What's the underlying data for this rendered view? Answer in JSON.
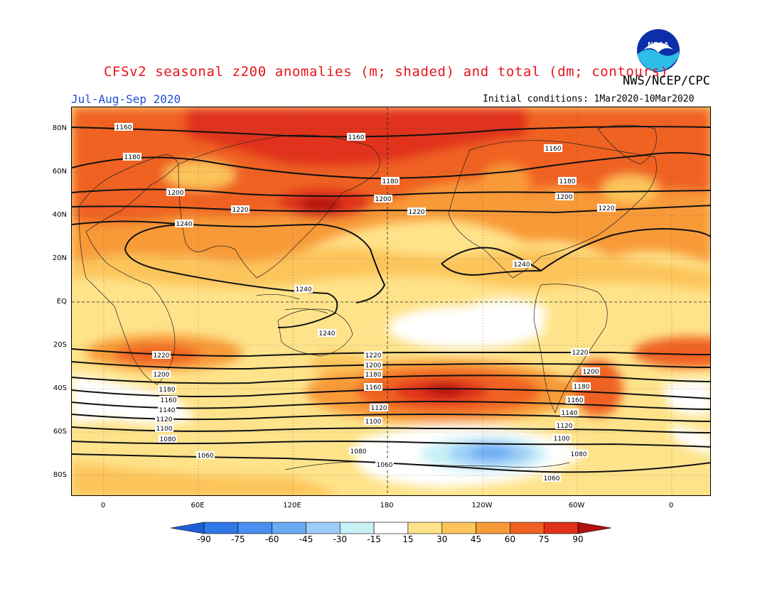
{
  "title": "CFSv2 seasonal z200 anomalies (m; shaded) and total (dm; contours)",
  "agency": "NWS/NCEP/CPC",
  "season": "Jul-Aug-Sep 2020",
  "initial_conditions": "Initial conditions: 1Mar2020-10Mar2020",
  "logo_text": "NOAA",
  "lat_labels": [
    "80N",
    "60N",
    "40N",
    "20N",
    "EQ",
    "20S",
    "40S",
    "60S",
    "80S"
  ],
  "lon_labels": [
    "0",
    "60E",
    "120E",
    "180",
    "120W",
    "60W",
    "0"
  ],
  "colorbar": {
    "labels": [
      "-90",
      "-75",
      "-60",
      "-45",
      "-30",
      "-15",
      "15",
      "30",
      "45",
      "60",
      "75",
      "90"
    ],
    "colors": [
      "#1c5fd9",
      "#2f78e6",
      "#4a8ff0",
      "#6aaaf5",
      "#9ccdf8",
      "#c8f0f5",
      "#ffffff",
      "#ffe38a",
      "#fcc45a",
      "#f89a38",
      "#f06222",
      "#e0321a",
      "#b01010"
    ]
  },
  "contour_labels": {
    "c1160n_a": "1160",
    "c1160n_b": "1160",
    "c1160n_c": "1160",
    "c1180n_a": "1180",
    "c1180n_b": "1180",
    "c1180n_c": "1180",
    "c1200n_a": "1200",
    "c1200n_b": "1200",
    "c1200n_c": "1200",
    "c1220n_a": "1220",
    "c1220n_b": "1220",
    "c1220n_c": "1220",
    "c1240n_a": "1240",
    "c1240n_b": "1240",
    "c1240eq_a": "1240",
    "c1240eq_b": "1240",
    "c1220s_a": "1220",
    "c1220s_b": "1220",
    "c1220s_c": "1220",
    "c1200s_a": "1200",
    "c1200s_b": "1200",
    "c1200s_c": "1200",
    "c1180s_a": "1180",
    "c1180s_b": "1180",
    "c1180s_c": "1180",
    "c1160s_a": "1160",
    "c1160s_b": "1160",
    "c1160s_c": "1160",
    "c1140s_a": "1140",
    "c1140s_b": "1140",
    "c1120s_a": "1120",
    "c1120s_b": "1120",
    "c1120s_c": "1120",
    "c1100s_a": "1100",
    "c1100s_b": "1100",
    "c1100s_c": "1100",
    "c1080s_a": "1080",
    "c1080s_b": "1080",
    "c1080s_c": "1080",
    "c1060s_a": "1060",
    "c1060s_b": "1060",
    "c1060s_c": "1060"
  }
}
